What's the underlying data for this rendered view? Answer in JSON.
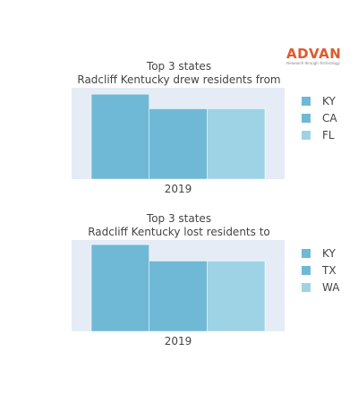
{
  "logo": {
    "brand": "ADVAN",
    "tagline": "Research through Technology"
  },
  "colors": {
    "plot_bg": "#e5ecf6",
    "bar_1": "#6fb9d6",
    "bar_2": "#6fb9d6",
    "bar_3": "#9ed3e5"
  },
  "chart_data": [
    {
      "type": "bar",
      "title": [
        "Top 3 states",
        "Radcliff Kentucky drew residents from"
      ],
      "categories": [
        "2019"
      ],
      "series": [
        {
          "name": "KY",
          "values": [
            93
          ]
        },
        {
          "name": "CA",
          "values": [
            77
          ]
        },
        {
          "name": "FL",
          "values": [
            77
          ]
        }
      ],
      "ylim": [
        0,
        100
      ],
      "grid": false,
      "legend": "right"
    },
    {
      "type": "bar",
      "title": [
        "Top 3 states",
        "Radcliff Kentucky lost residents to"
      ],
      "categories": [
        "2019"
      ],
      "series": [
        {
          "name": "KY",
          "values": [
            95
          ]
        },
        {
          "name": "TX",
          "values": [
            77
          ]
        },
        {
          "name": "WA",
          "values": [
            77
          ]
        }
      ],
      "ylim": [
        0,
        100
      ],
      "grid": false,
      "legend": "right"
    }
  ]
}
